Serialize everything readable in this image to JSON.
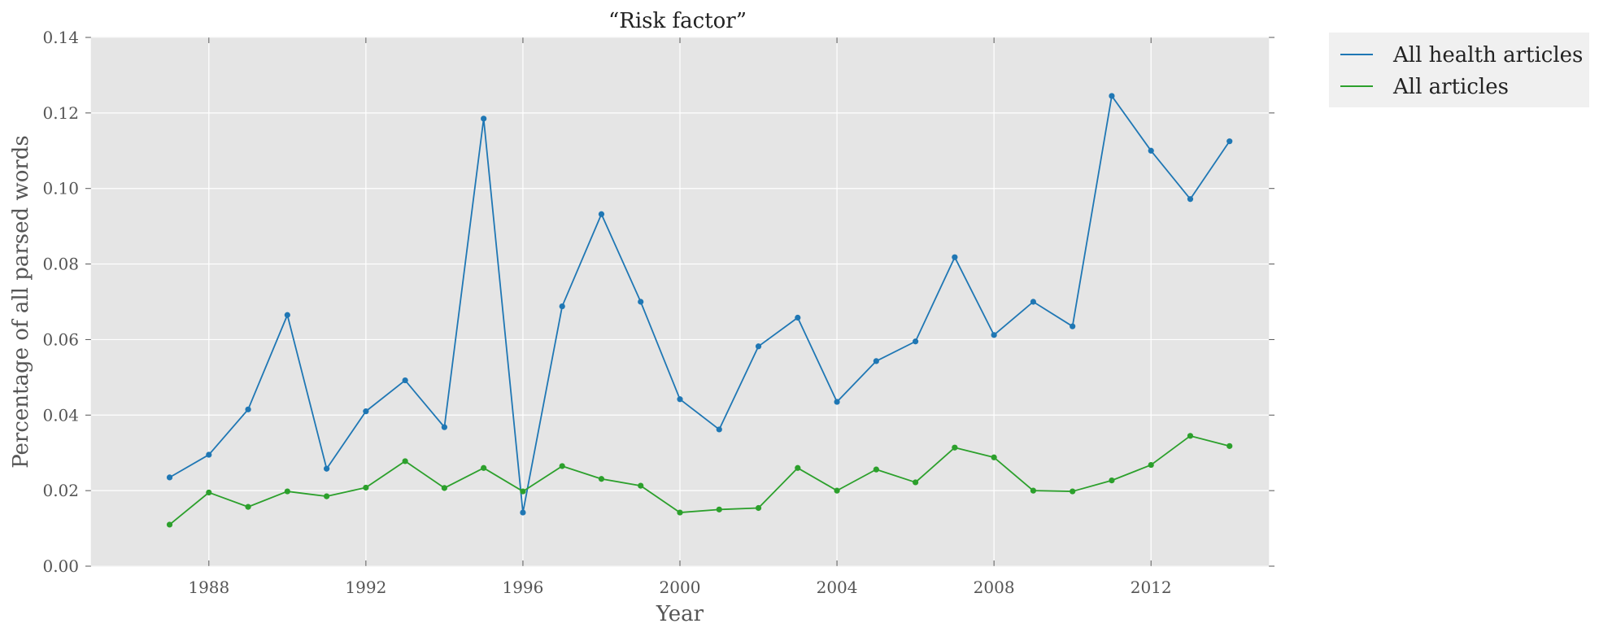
{
  "chart_data": {
    "type": "line",
    "title": "“Risk factor”",
    "xlabel": "Year",
    "ylabel": "Percentage of all parsed words",
    "xlim": [
      1985,
      2015
    ],
    "ylim": [
      0,
      0.14
    ],
    "xticks": [
      1988,
      1992,
      1996,
      2000,
      2004,
      2008,
      2012
    ],
    "yticks": [
      "0.00",
      "0.02",
      "0.04",
      "0.06",
      "0.08",
      "0.10",
      "0.12",
      "0.14"
    ],
    "grid": true,
    "legend_position": "outside-top-right",
    "x": [
      1987,
      1988,
      1989,
      1990,
      1991,
      1992,
      1993,
      1994,
      1995,
      1996,
      1997,
      1998,
      1999,
      2000,
      2001,
      2002,
      2003,
      2004,
      2005,
      2006,
      2007,
      2008,
      2009,
      2010,
      2011,
      2012,
      2013,
      2014
    ],
    "series": [
      {
        "name": "All health articles",
        "color": "#1f77b4",
        "values": [
          0.0235,
          0.0295,
          0.0415,
          0.0665,
          0.0258,
          0.041,
          0.0492,
          0.0368,
          0.1185,
          0.0142,
          0.0688,
          0.0932,
          0.07,
          0.0442,
          0.0362,
          0.0582,
          0.0658,
          0.0435,
          0.0543,
          0.0595,
          0.0818,
          0.0612,
          0.07,
          0.0635,
          0.1245,
          0.11,
          0.0972,
          0.1125
        ]
      },
      {
        "name": "All articles",
        "color": "#2ca02c",
        "values": [
          0.011,
          0.0195,
          0.0157,
          0.0198,
          0.0185,
          0.0208,
          0.0278,
          0.0207,
          0.026,
          0.0198,
          0.0265,
          0.0231,
          0.0213,
          0.0142,
          0.015,
          0.0154,
          0.026,
          0.02,
          0.0256,
          0.0222,
          0.0314,
          0.0288,
          0.02,
          0.0198,
          0.0227,
          0.0268,
          0.0345,
          0.0318
        ]
      }
    ]
  }
}
